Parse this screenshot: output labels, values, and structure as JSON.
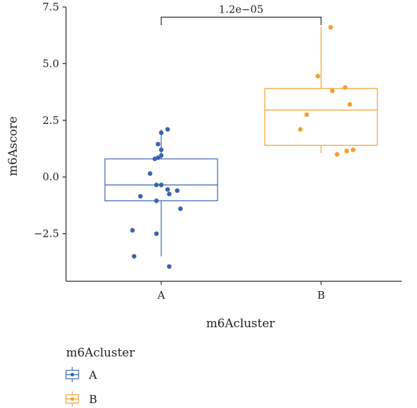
{
  "chart_data": {
    "type": "boxplot",
    "xlabel": "m6Acluster",
    "ylabel": "m6Ascore",
    "ylim": [
      -4.6,
      7.5
    ],
    "yticks": [
      -2.5,
      0.0,
      2.5,
      5.0,
      7.5
    ],
    "ytick_labels": [
      "−2.5",
      "0.0",
      "2.5",
      "5.0",
      "7.5"
    ],
    "categories": [
      "A",
      "B"
    ],
    "colors": {
      "A": "#3B64B0",
      "B": "#F0A030"
    },
    "boxes": [
      {
        "name": "A",
        "whisker_low": -3.5,
        "q1": -1.05,
        "median": -0.35,
        "q3": 0.8,
        "whisker_high": 2.1
      },
      {
        "name": "B",
        "whisker_low": 1.05,
        "q1": 1.4,
        "median": 2.95,
        "q3": 3.9,
        "whisker_high": 6.6
      }
    ],
    "points": {
      "A": [
        {
          "x": 0.04,
          "y": 2.1
        },
        {
          "x": 0.0,
          "y": 1.95
        },
        {
          "x": -0.02,
          "y": 1.45
        },
        {
          "x": 0.0,
          "y": 1.2
        },
        {
          "x": 0.0,
          "y": 0.95
        },
        {
          "x": -0.02,
          "y": 0.85
        },
        {
          "x": -0.04,
          "y": 0.8
        },
        {
          "x": -0.07,
          "y": 0.15
        },
        {
          "x": -0.03,
          "y": -0.35
        },
        {
          "x": 0.0,
          "y": -0.35
        },
        {
          "x": 0.1,
          "y": -0.6
        },
        {
          "x": 0.04,
          "y": -0.55
        },
        {
          "x": 0.05,
          "y": -0.75
        },
        {
          "x": -0.13,
          "y": -0.85
        },
        {
          "x": -0.03,
          "y": -1.05
        },
        {
          "x": 0.12,
          "y": -1.4
        },
        {
          "x": -0.18,
          "y": -2.35
        },
        {
          "x": -0.03,
          "y": -2.5
        },
        {
          "x": -0.17,
          "y": -3.5
        },
        {
          "x": 0.05,
          "y": -3.95
        }
      ],
      "B": [
        {
          "x": 0.06,
          "y": 6.6
        },
        {
          "x": -0.02,
          "y": 4.45
        },
        {
          "x": 0.15,
          "y": 3.95
        },
        {
          "x": 0.07,
          "y": 3.8
        },
        {
          "x": 0.18,
          "y": 3.2
        },
        {
          "x": -0.09,
          "y": 2.75
        },
        {
          "x": -0.13,
          "y": 2.1
        },
        {
          "x": 0.2,
          "y": 1.2
        },
        {
          "x": 0.16,
          "y": 1.15
        },
        {
          "x": 0.1,
          "y": 1.0
        }
      ]
    },
    "annotation": {
      "text": "1.2e−05",
      "between": [
        "A",
        "B"
      ],
      "y": 7.05,
      "tip": 6.7
    },
    "legend": {
      "title": "m6Acluster",
      "entries": [
        "A",
        "B"
      ],
      "placement": "bottom-left"
    },
    "grid": false
  }
}
